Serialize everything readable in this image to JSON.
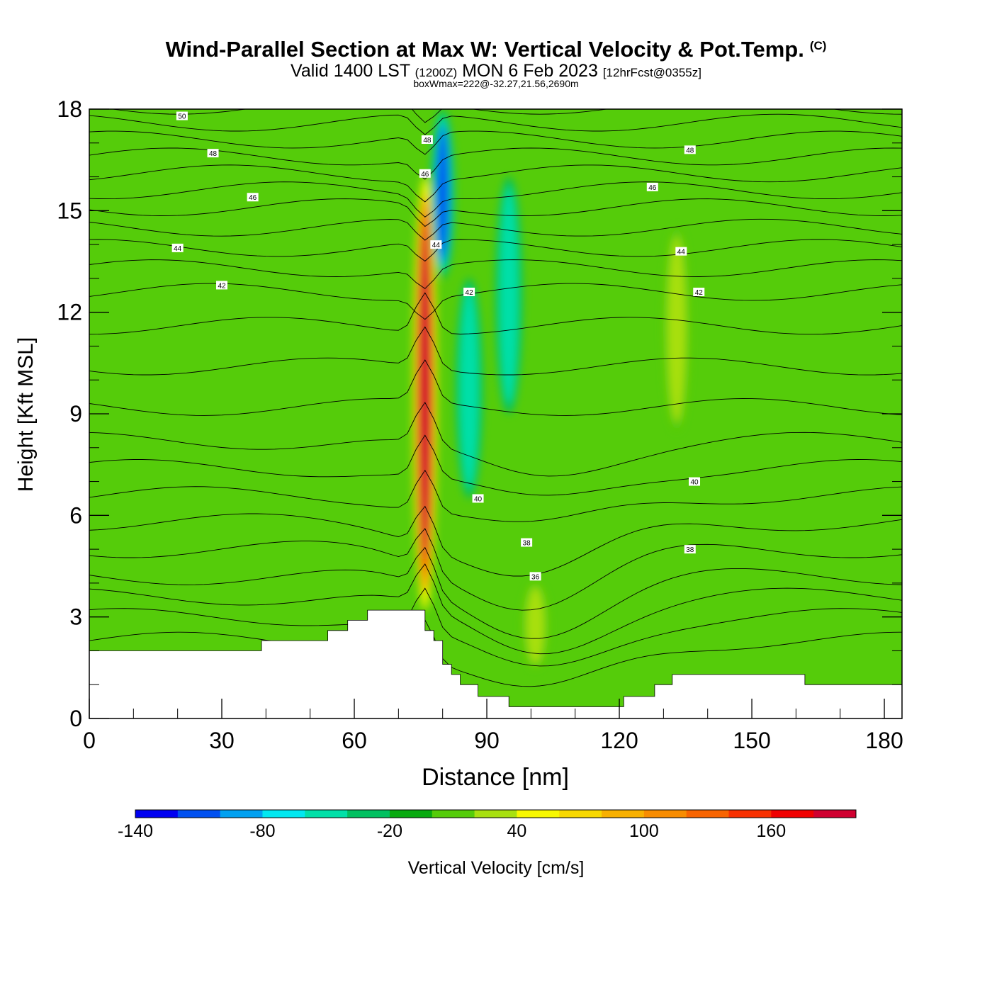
{
  "title": {
    "main": "Wind-Parallel Section at Max W: Vertical Velocity & Pot.Temp.",
    "copyright": "(C)",
    "valid_prefix": "Valid 1400 LST",
    "valid_utc": "(1200Z)",
    "valid_date": "MON 6 Feb 2023",
    "forecast": "[12hrFcst@0355z]",
    "box_wmax": "boxWmax=222@-32.27,21.56,2690m"
  },
  "chart_data": {
    "type": "heatmap",
    "xlabel": "Distance [nm]",
    "ylabel": "Height [Kft MSL]",
    "xlim": [
      0,
      184
    ],
    "ylim": [
      0,
      18
    ],
    "xticks": [
      0,
      30,
      60,
      90,
      120,
      150,
      180
    ],
    "yticks": [
      0,
      3,
      6,
      9,
      12,
      15,
      18
    ],
    "colorbar": {
      "label": "Vertical Velocity [cm/s]",
      "levels": [
        -140,
        -120,
        -100,
        -80,
        -60,
        -40,
        -20,
        0,
        20,
        40,
        60,
        80,
        100,
        120,
        140,
        160,
        180,
        200
      ],
      "ticks": [
        -140,
        -80,
        -20,
        40,
        100,
        160
      ],
      "colors": [
        "#0000f0",
        "#0050f0",
        "#00a0f0",
        "#00e8f0",
        "#00e0a8",
        "#00c060",
        "#08aa10",
        "#55cc0a",
        "#a8e010",
        "#f8f800",
        "#f8d800",
        "#f8b000",
        "#f88c00",
        "#f86400",
        "#f83000",
        "#f00000",
        "#d00030"
      ]
    },
    "background_w": 0,
    "w_features": [
      {
        "kind": "updraft_core",
        "x": 76,
        "z_range": [
          3.2,
          16
        ],
        "w_max": 222
      },
      {
        "kind": "downdraft_core",
        "x": 80,
        "z_range": [
          13,
          18
        ],
        "w_min": -110
      },
      {
        "kind": "downdraft_band",
        "x": 86,
        "z_range": [
          6.5,
          13
        ],
        "w_min": -60
      },
      {
        "kind": "downdraft_band",
        "x": 95,
        "z_range": [
          9,
          16
        ],
        "w_min": -55
      },
      {
        "kind": "weak_updraft",
        "x": 133,
        "z_range": [
          8.5,
          14.5
        ],
        "w_max": 30
      },
      {
        "kind": "weak_updraft",
        "x": 101,
        "z_range": [
          1.5,
          4
        ],
        "w_max": 25
      }
    ],
    "theta_contour_labels": [
      {
        "value": "50",
        "x": 21,
        "z": 17.8
      },
      {
        "value": "48",
        "x": 28,
        "z": 16.7
      },
      {
        "value": "46",
        "x": 37,
        "z": 15.4
      },
      {
        "value": "44",
        "x": 20,
        "z": 13.9
      },
      {
        "value": "42",
        "x": 30,
        "z": 12.8
      },
      {
        "value": "48",
        "x": 76.5,
        "z": 17.1
      },
      {
        "value": "46",
        "x": 76,
        "z": 16.1
      },
      {
        "value": "44",
        "x": 78.5,
        "z": 14
      },
      {
        "value": "42",
        "x": 86,
        "z": 12.6
      },
      {
        "value": "40",
        "x": 88,
        "z": 6.5
      },
      {
        "value": "38",
        "x": 99,
        "z": 5.2
      },
      {
        "value": "36",
        "x": 101,
        "z": 4.2
      },
      {
        "value": "48",
        "x": 136,
        "z": 16.8
      },
      {
        "value": "46",
        "x": 127.5,
        "z": 15.7
      },
      {
        "value": "44",
        "x": 134,
        "z": 13.8
      },
      {
        "value": "42",
        "x": 138,
        "z": 12.6
      },
      {
        "value": "40",
        "x": 137,
        "z": 7
      },
      {
        "value": "38",
        "x": 136,
        "z": 5
      }
    ],
    "terrain": [
      [
        0,
        2.0
      ],
      [
        39,
        2.0
      ],
      [
        39,
        2.3
      ],
      [
        54,
        2.3
      ],
      [
        54,
        2.6
      ],
      [
        58.5,
        2.6
      ],
      [
        58.5,
        2.9
      ],
      [
        63,
        2.9
      ],
      [
        63,
        3.2
      ],
      [
        76,
        3.2
      ],
      [
        76,
        2.6
      ],
      [
        78,
        2.6
      ],
      [
        78,
        2.3
      ],
      [
        80,
        2.3
      ],
      [
        80,
        1.6
      ],
      [
        82,
        1.6
      ],
      [
        82,
        1.3
      ],
      [
        84,
        1.3
      ],
      [
        84,
        1.0
      ],
      [
        88,
        1.0
      ],
      [
        88,
        0.65
      ],
      [
        95,
        0.65
      ],
      [
        95,
        0.35
      ],
      [
        121,
        0.35
      ],
      [
        121,
        0.65
      ],
      [
        128,
        0.65
      ],
      [
        128,
        1.0
      ],
      [
        132,
        1.0
      ],
      [
        132,
        1.3
      ],
      [
        162,
        1.3
      ],
      [
        162,
        1.0
      ],
      [
        184,
        1.0
      ]
    ]
  }
}
